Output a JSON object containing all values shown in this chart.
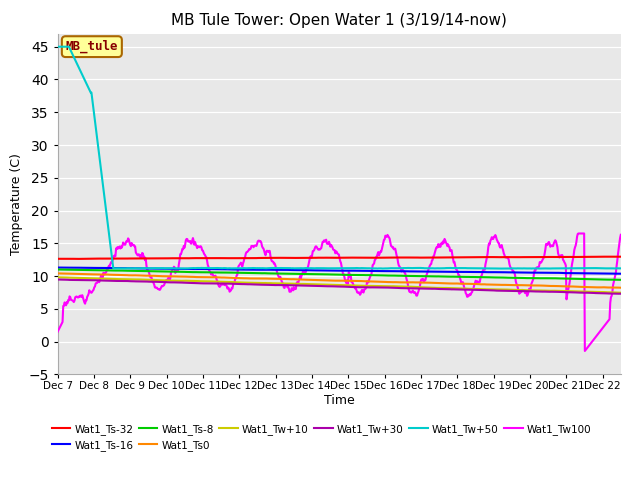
{
  "title": "MB Tule Tower: Open Water 1 (3/19/14-now)",
  "xlabel": "Time",
  "ylabel": "Temperature (C)",
  "xlim": [
    0,
    15.5
  ],
  "ylim": [
    -5,
    47
  ],
  "yticks": [
    -5,
    0,
    5,
    10,
    15,
    20,
    25,
    30,
    35,
    40,
    45
  ],
  "xtick_labels": [
    "Dec 7",
    "Dec 8",
    "Dec 9",
    "Dec 10",
    "Dec 11",
    "Dec 12",
    "Dec 13",
    "Dec 14",
    "Dec 15",
    "Dec 16",
    "Dec 17",
    "Dec 18",
    "Dec 19",
    "Dec 20",
    "Dec 21",
    "Dec 22"
  ],
  "bg_color": "#e8e8e8",
  "series": [
    {
      "name": "Wat1_Ts-32",
      "color": "#ff0000",
      "lw": 1.5
    },
    {
      "name": "Wat1_Ts-16",
      "color": "#0000ff",
      "lw": 1.5
    },
    {
      "name": "Wat1_Ts-8",
      "color": "#00cc00",
      "lw": 1.5
    },
    {
      "name": "Wat1_Ts0",
      "color": "#ff8800",
      "lw": 1.5
    },
    {
      "name": "Wat1_Tw+10",
      "color": "#cccc00",
      "lw": 1.5
    },
    {
      "name": "Wat1_Tw+30",
      "color": "#aa00aa",
      "lw": 1.5
    },
    {
      "name": "Wat1_Tw+50",
      "color": "#00cccc",
      "lw": 1.5
    },
    {
      "name": "Wat1_Tw100",
      "color": "#ff00ff",
      "lw": 1.5
    }
  ],
  "annotation": {
    "text": "MB_tule",
    "bg": "#ffff99",
    "border": "#aa6600",
    "text_color": "#880000",
    "fontsize": 9
  },
  "legend_row1": [
    "Wat1_Ts-32",
    "Wat1_Ts-16",
    "Wat1_Ts-8",
    "Wat1_Ts0",
    "Wat1_Tw+10",
    "Wat1_Tw+30"
  ],
  "legend_row2": [
    "Wat1_Tw+50",
    "Wat1_Tw100"
  ]
}
